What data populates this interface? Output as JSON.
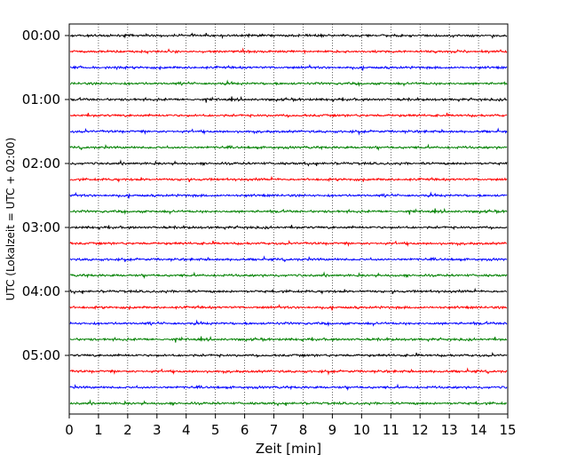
{
  "chart_data": {
    "type": "line",
    "subtype": "helicorder",
    "xlabel": "Zeit  [min]",
    "ylabel": "UTC (Lokalzeit = UTC + 02:00)",
    "xlim": [
      0,
      15
    ],
    "x_ticks": [
      "0",
      "1",
      "2",
      "3",
      "4",
      "5",
      "6",
      "7",
      "8",
      "9",
      "10",
      "11",
      "12",
      "13",
      "14",
      "15"
    ],
    "y_tick_labels": [
      "00:00",
      "01:00",
      "02:00",
      "03:00",
      "04:00",
      "05:00"
    ],
    "rows_per_hour": 4,
    "trace_count": 24,
    "trace_colors": [
      "#000000",
      "#ff0000",
      "#0000ff",
      "#008000"
    ],
    "vertical_grid": "dotted",
    "horizontal_grid": false
  }
}
